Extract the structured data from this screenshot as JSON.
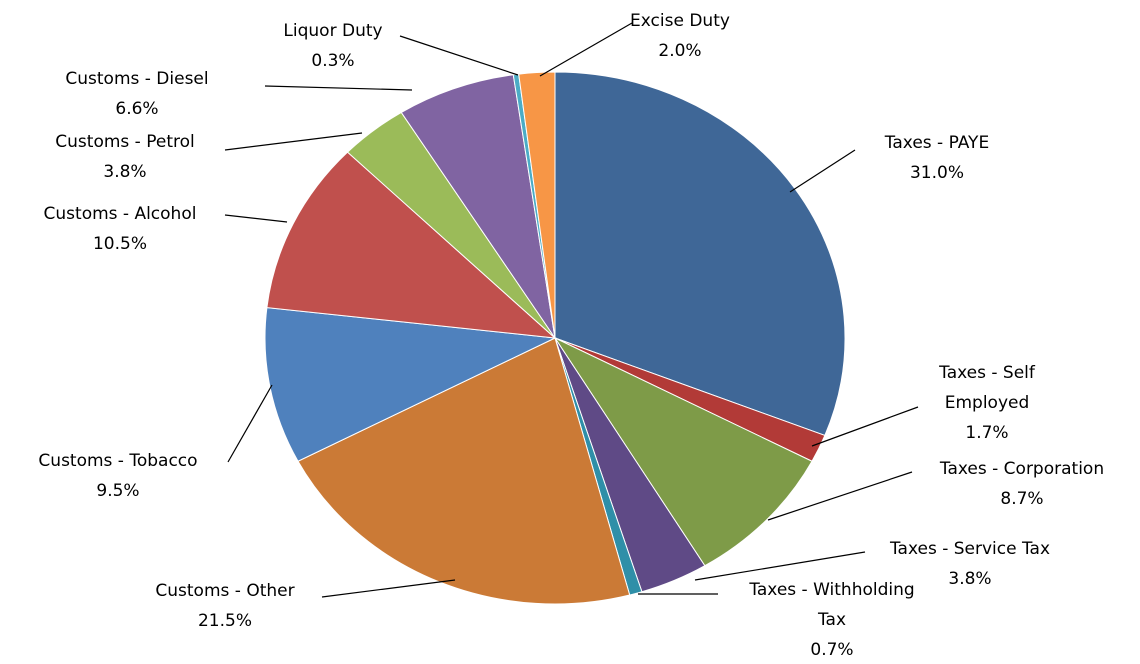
{
  "chart_data": {
    "type": "pie",
    "categories": [
      "Taxes - PAYE",
      "Taxes - Self Employed",
      "Taxes - Corporation",
      "Taxes - Service Tax",
      "Taxes - Withholding Tax",
      "Customs - Other",
      "Customs - Tobacco",
      "Customs - Alcohol",
      "Customs - Petrol",
      "Customs - Diesel",
      "Liquor Duty",
      "Excise Duty"
    ],
    "values": [
      31.0,
      1.7,
      8.7,
      3.8,
      0.7,
      21.5,
      9.5,
      10.5,
      3.8,
      6.6,
      0.3,
      2.0
    ],
    "value_labels": [
      "31.0%",
      "1.7%",
      "8.7%",
      "3.8%",
      "0.7%",
      "21.5%",
      "9.5%",
      "10.5%",
      "3.8%",
      "6.6%",
      "0.3%",
      "2.0%"
    ],
    "colors": [
      "#3f6797",
      "#b23a37",
      "#7e9b48",
      "#5f4a86",
      "#2f8fa8",
      "#cb7a36",
      "#4f81bd",
      "#c0504d",
      "#9bbb59",
      "#8064a2",
      "#4bacc6",
      "#f79646"
    ]
  }
}
